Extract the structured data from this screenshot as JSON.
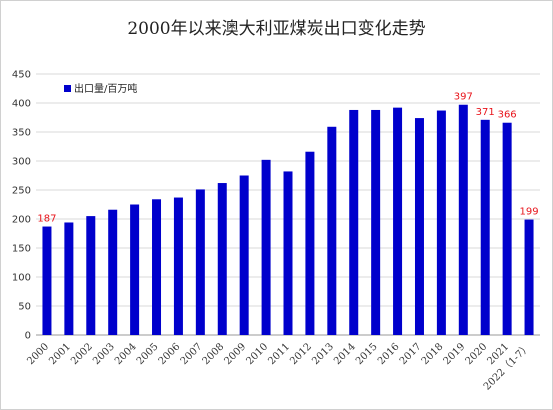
{
  "chart_data": {
    "type": "bar",
    "title": "2000年以来澳大利亚煤炭出口变化走势",
    "categories": [
      "2000",
      "2001",
      "2002",
      "2003",
      "2004",
      "2005",
      "2006",
      "2007",
      "2008",
      "2009",
      "2010",
      "2011",
      "2012",
      "2013",
      "2014",
      "2015",
      "2016",
      "2017",
      "2018",
      "2019",
      "2020",
      "2021",
      "2022（1-7）"
    ],
    "series": [
      {
        "name": "出口量/百万吨",
        "values": [
          187,
          194,
          205,
          216,
          225,
          234,
          237,
          251,
          262,
          275,
          302,
          282,
          316,
          359,
          388,
          388,
          392,
          374,
          387,
          397,
          371,
          366,
          199
        ]
      }
    ],
    "data_labels": [
      {
        "index": 0,
        "text": "187"
      },
      {
        "index": 19,
        "text": "397"
      },
      {
        "index": 20,
        "text": "371"
      },
      {
        "index": 21,
        "text": "366"
      },
      {
        "index": 22,
        "text": "199"
      }
    ],
    "ylim": [
      0,
      450
    ],
    "yticks": [
      0,
      50,
      100,
      150,
      200,
      250,
      300,
      350,
      400,
      450
    ],
    "grid": true,
    "legend": "top-left",
    "bar_color": "#0000cc",
    "label_color": "#e8141b",
    "grid_color": "#d9d9d9"
  }
}
